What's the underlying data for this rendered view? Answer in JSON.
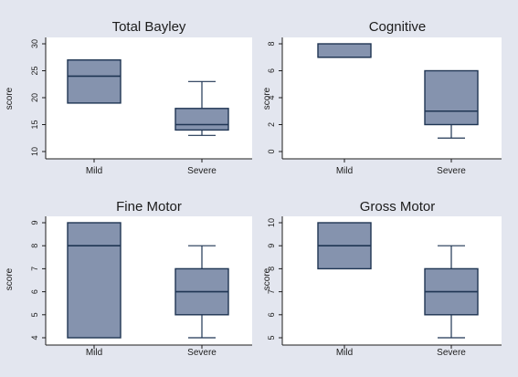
{
  "colors": {
    "background": "#e3e6ef",
    "plot_area": "#ffffff",
    "box_fill": "#8593ae",
    "box_stroke": "#1f3553",
    "axis": "#1c1c1c"
  },
  "chart_data": [
    {
      "type": "box",
      "title": "Total Bayley",
      "ylabel": "score",
      "ylim": [
        10,
        30
      ],
      "yticks": [
        10,
        15,
        20,
        25,
        30
      ],
      "categories": [
        "Mild",
        "Severe"
      ],
      "boxes": [
        {
          "category": "Mild",
          "min": 19,
          "q1": 19,
          "median": 24,
          "q3": 27,
          "max": 27
        },
        {
          "category": "Severe",
          "min": 13,
          "q1": 14,
          "median": 15,
          "q3": 18,
          "max": 23
        }
      ],
      "grid": false
    },
    {
      "type": "box",
      "title": "Cognitive",
      "ylabel": "score",
      "ylim": [
        0,
        8
      ],
      "yticks": [
        0,
        2,
        4,
        6,
        8
      ],
      "categories": [
        "Mild",
        "Severe"
      ],
      "boxes": [
        {
          "category": "Mild",
          "min": 7,
          "q1": 7,
          "median": 7,
          "q3": 8,
          "max": 8
        },
        {
          "category": "Severe",
          "min": 1,
          "q1": 2,
          "median": 3,
          "q3": 6,
          "max": 6
        }
      ],
      "grid": false
    },
    {
      "type": "box",
      "title": "Fine Motor",
      "ylabel": "score",
      "ylim": [
        4,
        9
      ],
      "yticks": [
        4,
        5,
        6,
        7,
        8,
        9
      ],
      "categories": [
        "Mild",
        "Severe"
      ],
      "boxes": [
        {
          "category": "Mild",
          "min": 4,
          "q1": 4,
          "median": 8,
          "q3": 9,
          "max": 9
        },
        {
          "category": "Severe",
          "min": 4,
          "q1": 5,
          "median": 6,
          "q3": 7,
          "max": 8
        }
      ],
      "grid": false
    },
    {
      "type": "box",
      "title": "Gross Motor",
      "ylabel": "score",
      "ylim": [
        5,
        10
      ],
      "yticks": [
        5,
        6,
        7,
        8,
        9,
        10
      ],
      "categories": [
        "Mild",
        "Severe"
      ],
      "boxes": [
        {
          "category": "Mild",
          "min": 8,
          "q1": 8,
          "median": 9,
          "q3": 10,
          "max": 10
        },
        {
          "category": "Severe",
          "min": 5,
          "q1": 6,
          "median": 7,
          "q3": 8,
          "max": 9
        }
      ],
      "grid": false
    }
  ]
}
